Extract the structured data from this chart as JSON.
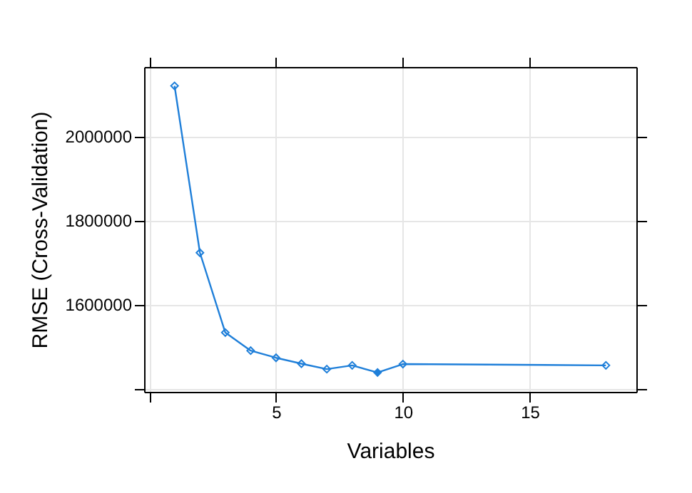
{
  "chart_data": {
    "type": "line",
    "xlabel": "Variables",
    "ylabel": "RMSE (Cross-Validation)",
    "xlim": [
      -0.2,
      19.2
    ],
    "ylim": [
      1392000,
      2165000
    ],
    "xticks": [
      {
        "value": 0,
        "label": null
      },
      5,
      10,
      15
    ],
    "yticks": [
      {
        "value": 1400000,
        "label": null
      },
      1600000,
      1800000,
      2000000
    ],
    "grid": true,
    "marker": "diamond",
    "line_style": "solid",
    "series": [
      {
        "color": "#1f7fd9",
        "x": [
          1,
          2,
          3,
          4,
          5,
          6,
          7,
          8,
          9,
          10,
          18
        ],
        "values": [
          2120000,
          1723000,
          1533000,
          1490000,
          1473000,
          1459000,
          1446000,
          1455000,
          1438000,
          1458000,
          1455000
        ]
      },
      {
        "type": "scatter",
        "color": "#1f7fd9",
        "x": [
          9
        ],
        "values": [
          1438000
        ]
      }
    ]
  }
}
